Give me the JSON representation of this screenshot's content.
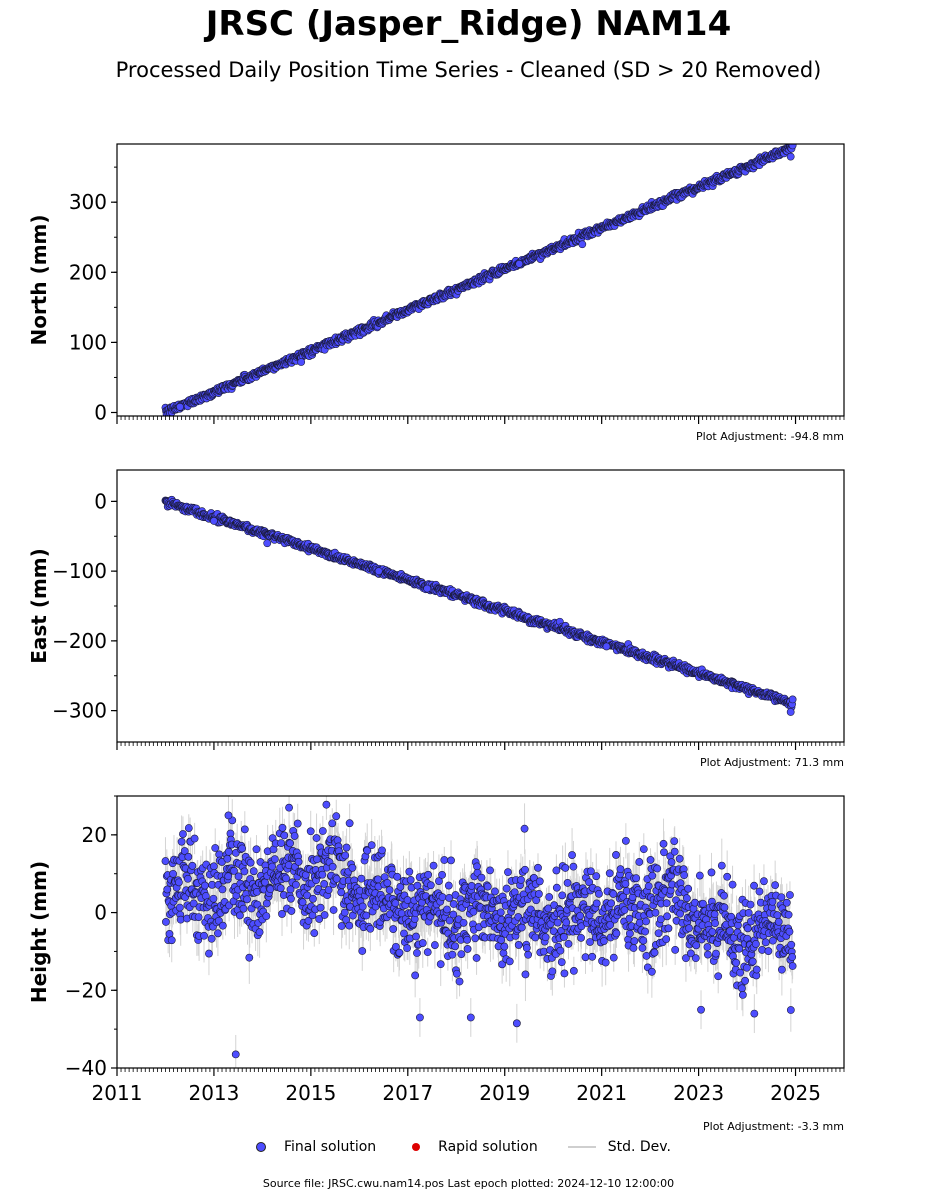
{
  "header": {
    "title": "JRSC (Jasper_Ridge) NAM14",
    "subtitle": "Processed Daily Position Time Series - Cleaned (SD > 20 Removed)"
  },
  "legend": {
    "final": "Final solution",
    "rapid": "Rapid solution",
    "std": "Std. Dev."
  },
  "footer": {
    "source": "Source file: JRSC.cwu.nam14.pos  Last epoch plotted: 2024-12-10 12:00:00"
  },
  "colors": {
    "final": "#4d4dff",
    "rapid": "#dd0000",
    "std": "#a0a0a0"
  },
  "chart_data": [
    {
      "type": "scatter",
      "ylabel": "North (mm)",
      "adjustment": "Plot Adjustment: -94.8 mm",
      "xlim": [
        2011,
        2026
      ],
      "ylim": [
        -5,
        383
      ],
      "yticks": [
        0,
        100,
        200,
        300
      ],
      "trend": {
        "x": [
          2012.0,
          2024.94
        ],
        "y": [
          0,
          378
        ]
      },
      "noise": 2.5,
      "outliers": [
        [
          2012.3,
          8
        ],
        [
          2014.8,
          72
        ],
        [
          2019.3,
          212
        ],
        [
          2020.6,
          240
        ],
        [
          2024.9,
          365
        ]
      ]
    },
    {
      "type": "scatter",
      "ylabel": "East (mm)",
      "adjustment": "Plot Adjustment: 71.3 mm",
      "xlim": [
        2011,
        2026
      ],
      "ylim": [
        -345,
        45
      ],
      "yticks": [
        0,
        -100,
        -200,
        -300
      ],
      "trend": {
        "x": [
          2012.0,
          2024.94
        ],
        "y": [
          0,
          -290
        ]
      },
      "noise": 2.5,
      "outliers": [
        [
          2013.0,
          -28
        ],
        [
          2014.1,
          -60
        ],
        [
          2016.4,
          -100
        ],
        [
          2017.4,
          -125
        ],
        [
          2021.1,
          -208
        ],
        [
          2024.9,
          -302
        ]
      ]
    },
    {
      "type": "scatter",
      "ylabel": "Height (mm)",
      "adjustment": "Plot Adjustment: -3.3 mm",
      "xlim": [
        2011,
        2026
      ],
      "ylim": [
        -40,
        30
      ],
      "yticks": [
        20,
        0,
        -20,
        -40
      ],
      "xticks": [
        2011,
        2013,
        2015,
        2017,
        2019,
        2021,
        2023,
        2025
      ],
      "xticklabels": [
        "2011",
        "2013",
        "2015",
        "2017",
        "2019",
        "2021",
        "2023",
        "2025"
      ],
      "x_range": [
        2012.0,
        2024.94
      ],
      "annual_means": [
        [
          2012.5,
          6
        ],
        [
          2013.5,
          6
        ],
        [
          2014.5,
          9
        ],
        [
          2015.5,
          9
        ],
        [
          2016.5,
          3
        ],
        [
          2017.5,
          0
        ],
        [
          2018.5,
          1
        ],
        [
          2019.5,
          -1
        ],
        [
          2020.5,
          -1
        ],
        [
          2021.5,
          1
        ],
        [
          2022.5,
          3
        ],
        [
          2023.5,
          -5
        ],
        [
          2024.5,
          -5
        ]
      ],
      "noise": 6,
      "outliers": [
        [
          2013.45,
          -36.5
        ],
        [
          2013.3,
          25
        ],
        [
          2014.55,
          27
        ],
        [
          2015.8,
          23
        ],
        [
          2017.25,
          -27
        ],
        [
          2018.3,
          -27
        ],
        [
          2019.25,
          -28.5
        ],
        [
          2023.05,
          -25
        ],
        [
          2024.15,
          -26
        ]
      ]
    }
  ]
}
